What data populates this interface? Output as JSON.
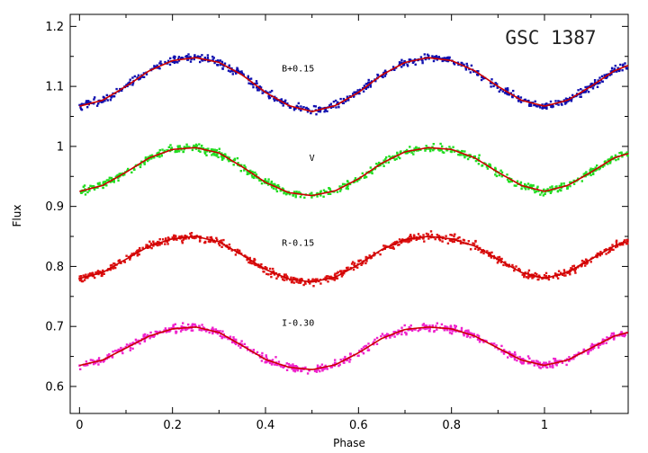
{
  "chart_data": {
    "type": "scatter",
    "title": "GSC 1387",
    "xlabel": "Phase",
    "ylabel": "Flux",
    "xlim": [
      -0.02,
      1.18
    ],
    "ylim": [
      0.555,
      1.22
    ],
    "xticks": [
      0,
      0.2,
      0.4,
      0.6,
      0.8,
      1
    ],
    "xtick_labels": [
      "0",
      "0.2",
      "0.4",
      "0.6",
      "0.8",
      "1"
    ],
    "yticks": [
      0.6,
      0.7,
      0.8,
      0.9,
      1.0,
      1.1,
      1.2
    ],
    "ytick_labels": [
      "0.6",
      "0.7",
      "0.8",
      "0.9",
      "1",
      "1.1",
      "1.2"
    ],
    "grid": false,
    "legend": "none",
    "fit_color": "#cc0000",
    "series": [
      {
        "name": "B+0.15",
        "label": "B+0.15",
        "color": "#1010b0",
        "label_pos": [
          0.47,
          1.125
        ],
        "phase": [
          0,
          0.05,
          0.1,
          0.15,
          0.2,
          0.25,
          0.3,
          0.35,
          0.4,
          0.45,
          0.5,
          0.55,
          0.6,
          0.65,
          0.7,
          0.75,
          0.8,
          0.85,
          0.9,
          0.95,
          1.0,
          1.05,
          1.1,
          1.15,
          1.18
        ],
        "fit_flux": [
          1.067,
          1.077,
          1.1,
          1.126,
          1.143,
          1.148,
          1.14,
          1.119,
          1.09,
          1.068,
          1.058,
          1.068,
          1.09,
          1.119,
          1.14,
          1.148,
          1.143,
          1.126,
          1.1,
          1.077,
          1.067,
          1.077,
          1.1,
          1.126,
          1.135
        ]
      },
      {
        "name": "V",
        "label": "V",
        "color": "#22dd22",
        "label_pos": [
          0.5,
          0.976
        ],
        "phase": [
          0,
          0.05,
          0.1,
          0.15,
          0.2,
          0.25,
          0.3,
          0.35,
          0.4,
          0.45,
          0.5,
          0.55,
          0.6,
          0.65,
          0.7,
          0.75,
          0.8,
          0.85,
          0.9,
          0.95,
          1.0,
          1.05,
          1.1,
          1.15,
          1.18
        ],
        "fit_flux": [
          0.925,
          0.935,
          0.957,
          0.981,
          0.995,
          0.998,
          0.989,
          0.966,
          0.94,
          0.923,
          0.918,
          0.926,
          0.946,
          0.972,
          0.991,
          0.998,
          0.995,
          0.981,
          0.957,
          0.935,
          0.925,
          0.935,
          0.957,
          0.981,
          0.988
        ]
      },
      {
        "name": "R-0.15",
        "label": "R-0.15",
        "color": "#dd1111",
        "label_pos": [
          0.47,
          0.834
        ],
        "phase": [
          0,
          0.05,
          0.1,
          0.15,
          0.2,
          0.25,
          0.3,
          0.35,
          0.4,
          0.45,
          0.5,
          0.55,
          0.6,
          0.65,
          0.7,
          0.75,
          0.8,
          0.85,
          0.9,
          0.95,
          1.0,
          1.05,
          1.1,
          1.15,
          1.18
        ],
        "fit_flux": [
          0.78,
          0.79,
          0.812,
          0.834,
          0.846,
          0.85,
          0.841,
          0.819,
          0.795,
          0.779,
          0.774,
          0.782,
          0.803,
          0.828,
          0.845,
          0.85,
          0.846,
          0.834,
          0.812,
          0.79,
          0.78,
          0.79,
          0.812,
          0.834,
          0.842
        ]
      },
      {
        "name": "I-0.30",
        "label": "I-0.30",
        "color": "#ee22cc",
        "label_pos": [
          0.47,
          0.701
        ],
        "phase": [
          0,
          0.05,
          0.1,
          0.15,
          0.2,
          0.25,
          0.3,
          0.35,
          0.4,
          0.45,
          0.5,
          0.55,
          0.6,
          0.65,
          0.7,
          0.75,
          0.8,
          0.85,
          0.9,
          0.95,
          1.0,
          1.05,
          1.1,
          1.15,
          1.18
        ],
        "fit_flux": [
          0.635,
          0.644,
          0.664,
          0.684,
          0.696,
          0.699,
          0.69,
          0.668,
          0.645,
          0.632,
          0.628,
          0.636,
          0.656,
          0.68,
          0.695,
          0.699,
          0.696,
          0.684,
          0.664,
          0.644,
          0.635,
          0.644,
          0.664,
          0.684,
          0.69
        ]
      }
    ]
  }
}
